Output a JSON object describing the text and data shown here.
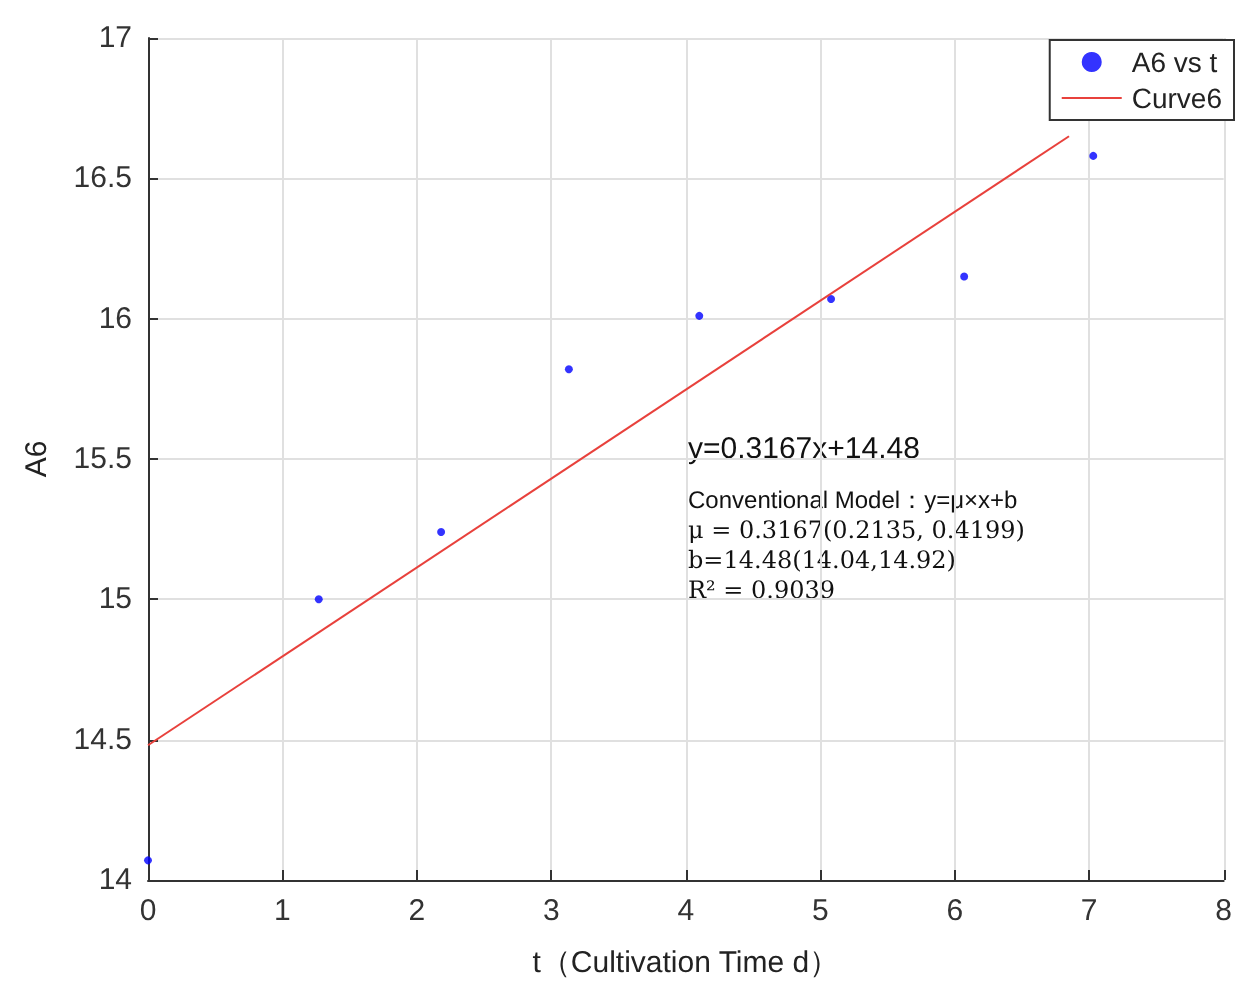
{
  "chart_data": {
    "type": "scatter",
    "xlabel": "t（Cultivation Time d）",
    "ylabel": "A6",
    "xlim": [
      0,
      8
    ],
    "xticks": [
      0,
      1,
      2,
      3,
      4,
      5,
      6,
      7,
      8
    ],
    "ylim": [
      14,
      17
    ],
    "yticks": [
      14,
      14.5,
      15,
      15.5,
      16,
      16.5,
      17
    ],
    "grid": true,
    "legend": "top right",
    "marker": "circle",
    "series": [
      {
        "name": "A6 vs t",
        "color": "#0000ff",
        "x": [
          0,
          1.27,
          2.18,
          3.13,
          4.1,
          5.08,
          6.07,
          7.03
        ],
        "values": [
          14.07,
          15.0,
          15.24,
          15.82,
          16.01,
          16.07,
          16.15,
          16.58
        ]
      },
      {
        "name": "Curve6",
        "type": "line",
        "marker": "none",
        "color": "#e8413c",
        "x": [
          0,
          6.85
        ],
        "values": [
          14.48,
          16.65
        ]
      }
    ],
    "annotations": [
      "y=0.3167x+14.48",
      "Conventional Model：y=μ×x+b",
      "μ = 0.3167(0.2135, 0.4199)",
      "b=14.48(14.04,14.92)",
      "R² = 0.9039"
    ]
  }
}
